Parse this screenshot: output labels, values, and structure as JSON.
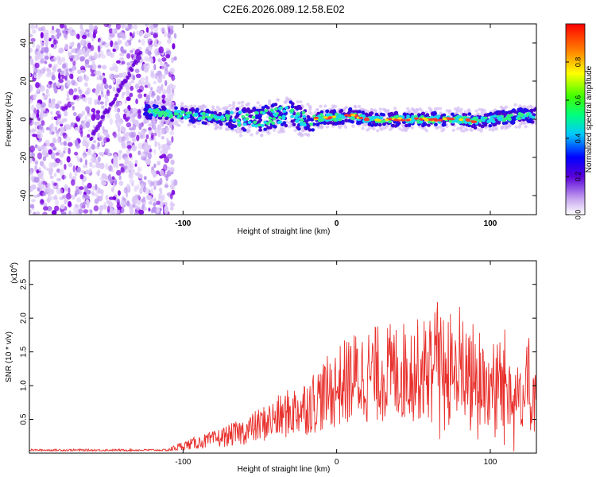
{
  "title": "C2E6.2026.089.12.58.E02",
  "colors": {
    "snr_line": "#e8302c",
    "frame": "#000000"
  },
  "chart_data": [
    {
      "type": "heatmap",
      "xlabel": "Height of straight line (km)",
      "ylabel": "Frequency (Hz)",
      "xlim": [
        -200,
        130
      ],
      "ylim": [
        -50,
        50
      ],
      "xticks": [
        -100,
        0,
        100
      ],
      "yticks": [
        -40,
        -20,
        0,
        20,
        40
      ],
      "xtick_labels": [
        "-100",
        "0",
        "100"
      ],
      "ytick_labels": [
        "-40",
        "-20",
        "0",
        "20",
        "40"
      ],
      "colorbar": {
        "label": "Normalized spectral amplitude",
        "range": [
          0.0,
          1.0
        ],
        "ticks": [
          0.0,
          0.2,
          0.4,
          0.6,
          0.8
        ],
        "tick_labels": [
          "0.0",
          "0.2",
          "0.4",
          "0.6",
          "0.8"
        ]
      },
      "ridge": {
        "x": [
          -125,
          -110,
          -95,
          -80,
          -65,
          -50,
          -40,
          -30,
          -20,
          -10,
          0,
          10,
          20,
          40,
          60,
          80,
          90,
          100,
          110,
          120,
          130
        ],
        "freq": [
          4,
          3,
          2,
          1,
          0,
          0,
          2,
          3,
          -1,
          1,
          1,
          2,
          0,
          0,
          0,
          0,
          -1,
          0,
          1,
          2,
          2
        ]
      },
      "noise_region": {
        "x_range": [
          -200,
          -105
        ]
      }
    },
    {
      "type": "line",
      "xlabel": "Height of straight line (km)",
      "ylabel": "SNR (10 * v/v)",
      "yscale_label": "(x10",
      "yscale_exp": "4",
      "xlim": [
        -200,
        130
      ],
      "ylim": [
        0,
        2.85
      ],
      "xticks": [
        -100,
        0,
        100
      ],
      "yticks": [
        0.5,
        1.0,
        1.5,
        2.0,
        2.5
      ],
      "xtick_labels": [
        "-100",
        "0",
        "100"
      ],
      "ytick_labels": [
        "0.5",
        "1.0",
        "1.5",
        "2.0",
        "2.5"
      ],
      "envelope": {
        "x": [
          -200,
          -110,
          -100,
          -80,
          -60,
          -40,
          -20,
          -10,
          0,
          10,
          20,
          40,
          60,
          80,
          100,
          120,
          130
        ],
        "y": [
          0.05,
          0.05,
          0.12,
          0.22,
          0.35,
          0.55,
          0.75,
          0.9,
          1.05,
          1.2,
          1.25,
          1.3,
          1.35,
          1.3,
          1.1,
          1.0,
          0.9
        ]
      }
    }
  ]
}
